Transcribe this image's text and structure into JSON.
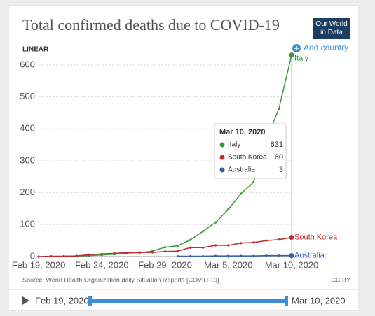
{
  "chart_data": {
    "type": "line",
    "title": "Total confirmed deaths due to COVID-19",
    "logo": "Our World in Data",
    "scale_label": "LINEAR",
    "add_button": "Add country",
    "source": "Source: World Health Organization daily Situation Reports [COVID-19]",
    "license": "CC BY",
    "x": [
      "2020-02-19",
      "2020-02-20",
      "2020-02-21",
      "2020-02-22",
      "2020-02-23",
      "2020-02-24",
      "2020-02-25",
      "2020-02-26",
      "2020-02-27",
      "2020-02-28",
      "2020-02-29",
      "2020-03-01",
      "2020-03-02",
      "2020-03-03",
      "2020-03-04",
      "2020-03-05",
      "2020-03-06",
      "2020-03-07",
      "2020-03-08",
      "2020-03-09",
      "2020-03-10"
    ],
    "xticks": [
      {
        "value": "2020-02-19",
        "label": "Feb 19, 2020"
      },
      {
        "value": "2020-02-24",
        "label": "Feb 24, 2020"
      },
      {
        "value": "2020-02-29",
        "label": "Feb 29, 2020"
      },
      {
        "value": "2020-03-05",
        "label": "Mar 5, 2020"
      },
      {
        "value": "2020-03-10",
        "label": "Mar 10, 2020"
      }
    ],
    "ylim": [
      0,
      650
    ],
    "yticks": [
      0,
      100,
      200,
      300,
      400,
      500,
      600
    ],
    "grid": true,
    "series": [
      {
        "name": "Italy",
        "color": "#3a9a3a",
        "values": [
          null,
          null,
          1,
          2,
          3,
          5,
          7,
          11,
          12,
          17,
          29,
          34,
          52,
          79,
          107,
          148,
          197,
          233,
          366,
          463,
          631
        ]
      },
      {
        "name": "South Korea",
        "color": "#c0292f",
        "values": [
          0,
          1,
          1,
          2,
          6,
          8,
          10,
          12,
          13,
          13,
          16,
          17,
          28,
          28,
          35,
          35,
          42,
          44,
          50,
          53,
          60
        ]
      },
      {
        "name": "Australia",
        "color": "#3360a9",
        "values": [
          null,
          null,
          null,
          null,
          null,
          null,
          null,
          null,
          null,
          null,
          null,
          1,
          1,
          1,
          2,
          2,
          2,
          2,
          3,
          3,
          3
        ]
      }
    ]
  }
}
